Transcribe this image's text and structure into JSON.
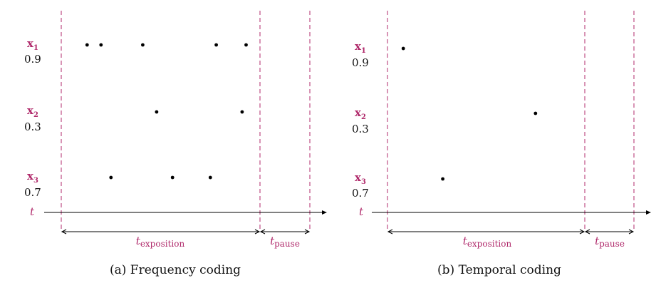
{
  "accent_color": "#b02a6b",
  "line_color": "#b02a6b",
  "panels": [
    {
      "caption": "(a) Frequency coding",
      "axis_label": "t",
      "exposition_label": "exposition",
      "pause_label": "pause",
      "rows": [
        {
          "name": "x",
          "sub": "1",
          "value": "0.9",
          "spikes": [
            0.13,
            0.2,
            0.41,
            0.78,
            0.93
          ]
        },
        {
          "name": "x",
          "sub": "2",
          "value": "0.3",
          "spikes": [
            0.48,
            0.91
          ]
        },
        {
          "name": "x",
          "sub": "3",
          "value": "0.7",
          "spikes": [
            0.25,
            0.56,
            0.75
          ]
        }
      ]
    },
    {
      "caption": "(b) Temporal coding",
      "axis_label": "t",
      "exposition_label": "exposition",
      "pause_label": "pause",
      "rows": [
        {
          "name": "x",
          "sub": "1",
          "value": "0.9",
          "spikes": [
            0.08
          ]
        },
        {
          "name": "x",
          "sub": "2",
          "value": "0.3",
          "spikes": [
            0.75
          ]
        },
        {
          "name": "x",
          "sub": "3",
          "value": "0.7",
          "spikes": [
            0.28
          ]
        }
      ]
    }
  ]
}
